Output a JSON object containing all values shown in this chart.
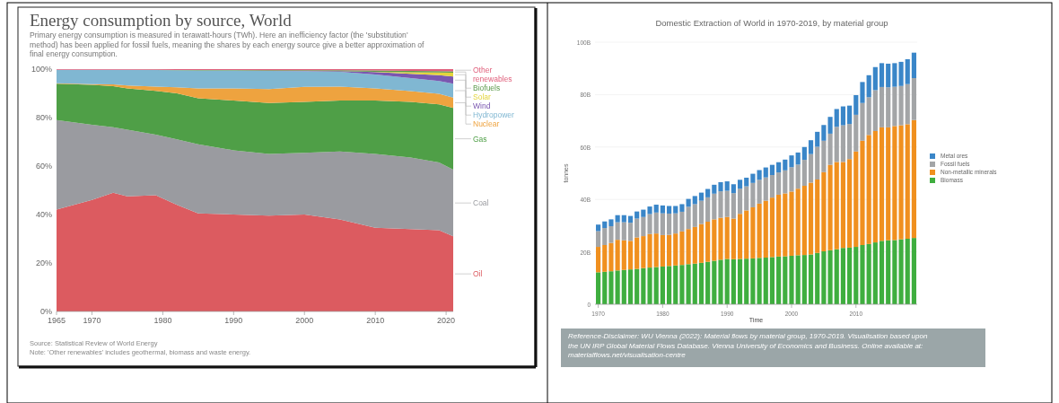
{
  "chart_data": [
    {
      "type": "area",
      "title": "Energy consumption by source, World",
      "subtitle": "Primary energy consumption is measured in terawatt-hours (TWh). Here an inefficiency factor (the 'substitution' method) has been applied for fossil fuels, meaning the shares by each energy source give a better approximation of final energy consumption.",
      "stacked": true,
      "legend": "right",
      "x": [
        1965,
        1970,
        1973,
        1975,
        1979,
        1982,
        1985,
        1990,
        1995,
        2000,
        2005,
        2010,
        2015,
        2019,
        2021
      ],
      "series": [
        {
          "name": "Oil",
          "color": "#dc5b60",
          "values": [
            42,
            46,
            49,
            47.5,
            48,
            44,
            40.5,
            40,
            39.5,
            40,
            38,
            34.5,
            34,
            33.5,
            31
          ]
        },
        {
          "name": "Coal",
          "color": "#9a9ba0",
          "values": [
            37,
            31,
            27,
            27.5,
            25,
            27,
            28.5,
            26.5,
            25.5,
            25.5,
            28,
            30.5,
            29.5,
            28,
            27.5
          ]
        },
        {
          "name": "Gas",
          "color": "#4f9f47",
          "values": [
            15,
            16.5,
            17,
            17,
            18,
            19,
            19,
            20.5,
            21,
            21,
            21,
            22,
            23,
            24,
            25.5
          ]
        },
        {
          "name": "Nuclear",
          "color": "#eea33f",
          "values": [
            0.2,
            0.3,
            0.7,
            1.2,
            1.8,
            2.5,
            4,
            5,
            5.8,
            6.2,
            5.8,
            5,
            4.4,
            4.3,
            4.2
          ]
        },
        {
          "name": "Hydropower",
          "color": "#80b7d2",
          "values": [
            5.5,
            5.9,
            6,
            6.5,
            6.8,
            7,
            7.4,
            7.4,
            7.5,
            6.5,
            6.1,
            5.8,
            5.4,
            5.3,
            5.8
          ]
        },
        {
          "name": "Wind",
          "color": "#7a57b0",
          "values": [
            0,
            0,
            0,
            0,
            0,
            0,
            0,
            0,
            0,
            0.1,
            0.3,
            1,
            1.8,
            2.4,
            2.9
          ]
        },
        {
          "name": "Solar",
          "color": "#e3d43c",
          "values": [
            0,
            0,
            0,
            0,
            0,
            0,
            0,
            0,
            0,
            0,
            0,
            0.1,
            0.6,
            1.1,
            1.6
          ]
        },
        {
          "name": "Biofuels",
          "color": "#5c9a4c",
          "values": [
            0,
            0,
            0,
            0,
            0.1,
            0.1,
            0.2,
            0.2,
            0.2,
            0.2,
            0.3,
            0.5,
            0.6,
            0.6,
            0.6
          ]
        },
        {
          "name": "Other renewables",
          "color": "#e0607c",
          "values": [
            0.3,
            0.3,
            0.3,
            0.3,
            0.3,
            0.4,
            0.4,
            0.4,
            0.5,
            0.5,
            0.5,
            0.6,
            0.7,
            0.8,
            0.9
          ]
        }
      ],
      "xlim": [
        1965,
        2021
      ],
      "xticks": [
        1965,
        1970,
        1980,
        1990,
        2000,
        2010,
        2020
      ],
      "ylim": [
        0,
        100
      ],
      "yticks": [
        {
          "value": 0,
          "label": "0%"
        },
        {
          "value": 20,
          "label": "20%"
        },
        {
          "value": 40,
          "label": "40%"
        },
        {
          "value": 60,
          "label": "60%"
        },
        {
          "value": 80,
          "label": "80%"
        },
        {
          "value": 100,
          "label": "100%"
        }
      ],
      "annotations": [
        "Source: Statistical Review of World Energy",
        "Note: 'Other renewables' includes geothermal, biomass and waste energy."
      ]
    },
    {
      "type": "bar",
      "title": "Domestic Extraction of World in 1970-2019, by material group",
      "xlabel": "Time",
      "ylabel": "tonnes",
      "stacked": true,
      "legend": "right",
      "grid": "y",
      "x": [
        1970,
        1971,
        1972,
        1973,
        1974,
        1975,
        1976,
        1977,
        1978,
        1979,
        1980,
        1981,
        1982,
        1983,
        1984,
        1985,
        1986,
        1987,
        1988,
        1989,
        1990,
        1991,
        1992,
        1993,
        1994,
        1995,
        1996,
        1997,
        1998,
        1999,
        2000,
        2001,
        2002,
        2003,
        2004,
        2005,
        2006,
        2007,
        2008,
        2009,
        2010,
        2011,
        2012,
        2013,
        2014,
        2015,
        2016,
        2017,
        2018,
        2019
      ],
      "series": [
        {
          "name": "Biomass",
          "color": "#3fae3f",
          "values": [
            12.2,
            12.4,
            12.6,
            12.9,
            13.1,
            13.3,
            13.5,
            13.8,
            14,
            14.2,
            14.4,
            14.6,
            14.8,
            15,
            15.3,
            15.5,
            15.8,
            16.2,
            16.6,
            17,
            17.3,
            17.2,
            17.3,
            17.4,
            17.5,
            17.7,
            17.8,
            18,
            18.2,
            18.3,
            18.5,
            18.7,
            18.8,
            19,
            19.6,
            20.2,
            20.6,
            21,
            21.5,
            21.6,
            21.9,
            22.6,
            23,
            23.6,
            24.2,
            24.4,
            24.5,
            24.8,
            25,
            25.3
          ]
        },
        {
          "name": "Non-metallic minerals",
          "color": "#f0901f",
          "values": [
            9.7,
            10.2,
            10.8,
            11.7,
            11.3,
            10.9,
            12,
            12.2,
            12.8,
            12.8,
            12,
            11.9,
            12.2,
            12.8,
            13.4,
            14,
            14.8,
            15.3,
            15.8,
            16,
            16,
            15.5,
            17.2,
            18.4,
            19.5,
            20.7,
            21.7,
            22.7,
            23.6,
            24,
            24.5,
            25.4,
            26.4,
            27.4,
            28,
            30.2,
            32.6,
            33.3,
            32.8,
            33.8,
            36.4,
            39.8,
            41.6,
            42.5,
            43.3,
            43.1,
            43.5,
            43.5,
            43.7,
            45
          ]
        },
        {
          "name": "Fossil fuels",
          "color": "#a3a5a7",
          "values": [
            6,
            6.5,
            6.4,
            6.7,
            6.9,
            6.9,
            7.2,
            7.3,
            7.6,
            8,
            8.3,
            8.1,
            7.7,
            7.5,
            8.5,
            8.7,
            8.9,
            9.3,
            9.8,
            10.1,
            10,
            9.7,
            9.6,
            9.2,
            9.3,
            9.1,
            8.9,
            8.6,
            8.5,
            8.8,
            9.3,
            9.2,
            9.9,
            10.9,
            12.5,
            12,
            11.9,
            13.4,
            14,
            13.4,
            14,
            14.4,
            14.4,
            15.6,
            15.4,
            15.3,
            15,
            15,
            15.3,
            16
          ]
        },
        {
          "name": "Metal ores",
          "color": "#3a86c8",
          "values": [
            2.5,
            2.5,
            2.6,
            2.7,
            2.7,
            2.6,
            2.7,
            2.8,
            2.9,
            3,
            3,
            2.9,
            2.8,
            2.9,
            3,
            3.1,
            3.1,
            3.2,
            3.4,
            3.5,
            3.6,
            3.4,
            3.4,
            3.3,
            3.5,
            3.7,
            3.8,
            3.9,
            3.9,
            4.1,
            4.5,
            4.6,
            4.9,
            5.3,
            5.7,
            6,
            6.4,
            6.8,
            7.2,
            7,
            7.5,
            8,
            8.4,
            8.8,
            9.1,
            9,
            9,
            9.2,
            9.5,
            9.7
          ]
        }
      ],
      "xlim": [
        1969.5,
        2019.5
      ],
      "xticks": [
        1970,
        1980,
        1990,
        2000,
        2010
      ],
      "ylim": [
        0,
        100
      ],
      "yticks": [
        {
          "value": 0,
          "label": "0"
        },
        {
          "value": 20,
          "label": "20B"
        },
        {
          "value": 40,
          "label": "40B"
        },
        {
          "value": 60,
          "label": "60B"
        },
        {
          "value": 80,
          "label": "80B"
        },
        {
          "value": 100,
          "label": "100B"
        }
      ],
      "annotations": [
        "Reference-Disclaimer: WU Vienna (2022): Material flows by material group, 1970-2019. Visualisation based upon the UN IRP Global Material Flows Database. Vienna University of Economics and Business. Online available at: materialflows.net/visualisation-centre"
      ]
    }
  ]
}
